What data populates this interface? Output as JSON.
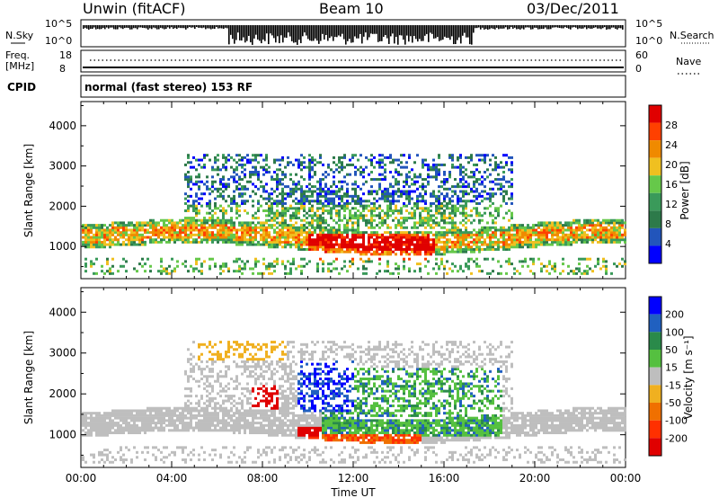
{
  "header": {
    "station": "Unwin (fitACF)",
    "beam": "Beam 10",
    "date": "03/Dec/2011"
  },
  "strip_panels": {
    "nsky_label": "N.Sky",
    "nsky_ticks": [
      "10^5",
      "10^0"
    ],
    "nsearch_label": "N.Search",
    "freq_label": "Freq.",
    "freq_unit": "[MHz]",
    "freq_ticks": [
      "18",
      "8"
    ],
    "nave_label": "Nave",
    "nave_ticks": [
      "60",
      "0"
    ],
    "cpid_label": "CPID",
    "cpid_text": "normal (fast stereo) 153 RF"
  },
  "colors": {
    "power": [
      "#0000ff",
      "#2255bb",
      "#2d7a4a",
      "#3a9a5a",
      "#66c84a",
      "#f0c020",
      "#f08a00",
      "#ff4000",
      "#e00000"
    ],
    "velocity": [
      "#0000ff",
      "#2060c0",
      "#2a8a4a",
      "#55c040",
      "#bebebe",
      "#f0b020",
      "#f07000",
      "#ff3000",
      "#e00000"
    ]
  },
  "chart_data": [
    {
      "type": "heatmap",
      "title": "",
      "xlabel": "Time UT",
      "ylabel": "Slant Range [km]",
      "x_ticks": [
        "00:00",
        "04:00",
        "08:00",
        "12:00",
        "16:00",
        "20:00",
        "00:00"
      ],
      "y_ticks": [
        "1000",
        "2000",
        "3000",
        "4000"
      ],
      "ylim": [
        200,
        4600
      ],
      "colorbar_label": "Power [dB]",
      "colorbar_ticks": [
        "4",
        "8",
        "12",
        "16",
        "20",
        "24",
        "28"
      ],
      "colorbar_range": [
        0,
        30
      ]
    },
    {
      "type": "heatmap",
      "title": "",
      "xlabel": "Time UT",
      "ylabel": "Slant Range [km]",
      "x_ticks": [
        "00:00",
        "04:00",
        "08:00",
        "12:00",
        "16:00",
        "20:00",
        "00:00"
      ],
      "y_ticks": [
        "1000",
        "2000",
        "3000",
        "4000"
      ],
      "ylim": [
        200,
        4600
      ],
      "colorbar_label": "Velocity [m s⁻¹]",
      "colorbar_ticks": [
        "200",
        "100",
        "50",
        "15",
        "-15",
        "-50",
        "-100",
        "-200"
      ],
      "colorbar_range": [
        -250,
        250
      ]
    }
  ]
}
